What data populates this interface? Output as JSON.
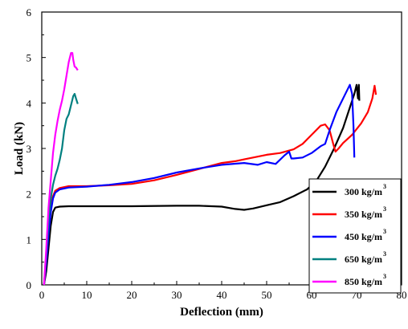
{
  "chart_data": {
    "type": "line",
    "xlabel": "Deflection (mm)",
    "ylabel": "Load (kN)",
    "xlim": [
      0,
      80
    ],
    "ylim": [
      0,
      6
    ],
    "xticks": [
      0,
      10,
      20,
      30,
      40,
      50,
      60,
      70,
      80
    ],
    "yticks": [
      0,
      1,
      2,
      3,
      4,
      5,
      6
    ],
    "grid": false,
    "legend_position": "bottom-right",
    "series": [
      {
        "name": "300 kg/m",
        "name_sup": "3",
        "color": "#000000",
        "points": [
          [
            0.5,
            0
          ],
          [
            1,
            0.3
          ],
          [
            1.5,
            0.8
          ],
          [
            2,
            1.3
          ],
          [
            2.5,
            1.6
          ],
          [
            3,
            1.7
          ],
          [
            4,
            1.72
          ],
          [
            6,
            1.73
          ],
          [
            10,
            1.73
          ],
          [
            20,
            1.73
          ],
          [
            30,
            1.74
          ],
          [
            35,
            1.74
          ],
          [
            40,
            1.72
          ],
          [
            43,
            1.67
          ],
          [
            45,
            1.65
          ],
          [
            47,
            1.68
          ],
          [
            50,
            1.75
          ],
          [
            53,
            1.82
          ],
          [
            56,
            1.95
          ],
          [
            59,
            2.1
          ],
          [
            61,
            2.28
          ],
          [
            63,
            2.6
          ],
          [
            65,
            3.0
          ],
          [
            67,
            3.45
          ],
          [
            68.5,
            3.9
          ],
          [
            69.5,
            4.2
          ],
          [
            70,
            4.4
          ],
          [
            70.3,
            4.1
          ],
          [
            70.5,
            4.4
          ],
          [
            70.6,
            4.05
          ]
        ]
      },
      {
        "name": "350 kg/m",
        "name_sup": "3",
        "color": "#ff0000",
        "points": [
          [
            0.5,
            0
          ],
          [
            1,
            0.6
          ],
          [
            1.5,
            1.2
          ],
          [
            2,
            1.7
          ],
          [
            2.5,
            1.95
          ],
          [
            3,
            2.07
          ],
          [
            4,
            2.13
          ],
          [
            6,
            2.17
          ],
          [
            10,
            2.17
          ],
          [
            15,
            2.19
          ],
          [
            20,
            2.22
          ],
          [
            25,
            2.3
          ],
          [
            30,
            2.42
          ],
          [
            35,
            2.55
          ],
          [
            40,
            2.68
          ],
          [
            43,
            2.72
          ],
          [
            45,
            2.76
          ],
          [
            47,
            2.8
          ],
          [
            50,
            2.86
          ],
          [
            53,
            2.9
          ],
          [
            56,
            2.98
          ],
          [
            58,
            3.1
          ],
          [
            60,
            3.3
          ],
          [
            62,
            3.5
          ],
          [
            63,
            3.53
          ],
          [
            64,
            3.4
          ],
          [
            64.8,
            3.1
          ],
          [
            65.3,
            2.93
          ],
          [
            66,
            3.0
          ],
          [
            67,
            3.12
          ],
          [
            69,
            3.3
          ],
          [
            71,
            3.55
          ],
          [
            72.5,
            3.8
          ],
          [
            73.5,
            4.1
          ],
          [
            74,
            4.38
          ],
          [
            74.3,
            4.18
          ]
        ]
      },
      {
        "name": "450 kg/m",
        "name_sup": "3",
        "color": "#0000ff",
        "points": [
          [
            0.5,
            0
          ],
          [
            1,
            0.5
          ],
          [
            1.5,
            1.1
          ],
          [
            2,
            1.6
          ],
          [
            2.5,
            1.9
          ],
          [
            3,
            2.03
          ],
          [
            4,
            2.1
          ],
          [
            6,
            2.14
          ],
          [
            10,
            2.16
          ],
          [
            15,
            2.2
          ],
          [
            20,
            2.26
          ],
          [
            25,
            2.35
          ],
          [
            30,
            2.47
          ],
          [
            35,
            2.56
          ],
          [
            40,
            2.64
          ],
          [
            45,
            2.68
          ],
          [
            48,
            2.64
          ],
          [
            50,
            2.7
          ],
          [
            52,
            2.66
          ],
          [
            54,
            2.85
          ],
          [
            55,
            2.93
          ],
          [
            55.5,
            2.78
          ],
          [
            56,
            2.78
          ],
          [
            58,
            2.8
          ],
          [
            60,
            2.9
          ],
          [
            62,
            3.05
          ],
          [
            63,
            3.1
          ],
          [
            64,
            3.4
          ],
          [
            65.5,
            3.8
          ],
          [
            67,
            4.1
          ],
          [
            68.5,
            4.4
          ],
          [
            69,
            4.2
          ],
          [
            69.3,
            3.5
          ],
          [
            69.5,
            2.8
          ]
        ]
      },
      {
        "name": "650 kg/m",
        "name_sup": "3",
        "color": "#008080",
        "points": [
          [
            0.5,
            0
          ],
          [
            1,
            0.7
          ],
          [
            1.5,
            1.4
          ],
          [
            2,
            1.9
          ],
          [
            2.5,
            2.2
          ],
          [
            3,
            2.4
          ],
          [
            3.5,
            2.55
          ],
          [
            4,
            2.75
          ],
          [
            4.5,
            3.0
          ],
          [
            5,
            3.4
          ],
          [
            5.5,
            3.65
          ],
          [
            6,
            3.75
          ],
          [
            6.5,
            3.95
          ],
          [
            7,
            4.15
          ],
          [
            7.3,
            4.2
          ],
          [
            7.6,
            4.1
          ],
          [
            8,
            3.98
          ]
        ]
      },
      {
        "name": "850 kg/m",
        "name_sup": "3",
        "color": "#ff00ff",
        "points": [
          [
            0.5,
            0
          ],
          [
            1,
            0.8
          ],
          [
            1.5,
            1.7
          ],
          [
            2,
            2.3
          ],
          [
            2.5,
            2.9
          ],
          [
            3,
            3.3
          ],
          [
            3.5,
            3.6
          ],
          [
            4,
            3.85
          ],
          [
            4.5,
            4.05
          ],
          [
            5,
            4.3
          ],
          [
            5.5,
            4.6
          ],
          [
            6,
            4.9
          ],
          [
            6.5,
            5.1
          ],
          [
            6.8,
            5.1
          ],
          [
            7,
            4.95
          ],
          [
            7.3,
            4.8
          ],
          [
            7.6,
            4.78
          ],
          [
            8,
            4.72
          ]
        ]
      }
    ]
  }
}
